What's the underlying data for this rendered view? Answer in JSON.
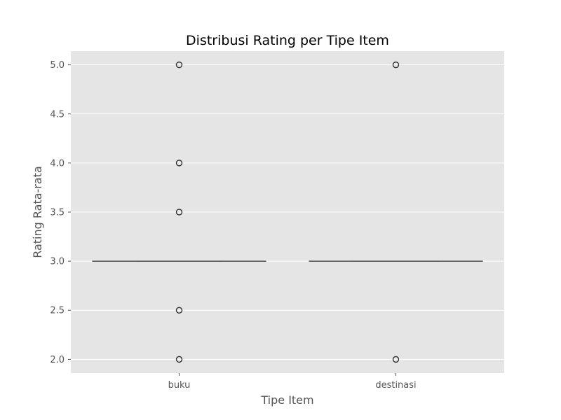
{
  "chart_data": {
    "type": "box",
    "title": "Distribusi Rating per Tipe Item",
    "xlabel": "Tipe Item",
    "ylabel": "Rating Rata-rata",
    "ylim": [
      1.86,
      5.14
    ],
    "yticks": [
      "2.0",
      "2.5",
      "3.0",
      "3.5",
      "4.0",
      "4.5",
      "5.0"
    ],
    "grid": true,
    "background": "#e5e5e5",
    "grid_color": "#ffffff",
    "median_color": "#555555",
    "categories": [
      "buku",
      "destinasi"
    ],
    "boxes": [
      {
        "category": "buku",
        "q1": 3.0,
        "median": 3.0,
        "q3": 3.0,
        "whisker_low": 3.0,
        "whisker_high": 3.0,
        "outliers": [
          5.0,
          4.0,
          3.5,
          2.5,
          2.0
        ]
      },
      {
        "category": "destinasi",
        "q1": 3.0,
        "median": 3.0,
        "q3": 3.0,
        "whisker_low": 3.0,
        "whisker_high": 3.0,
        "outliers": [
          5.0,
          2.0
        ]
      }
    ]
  }
}
